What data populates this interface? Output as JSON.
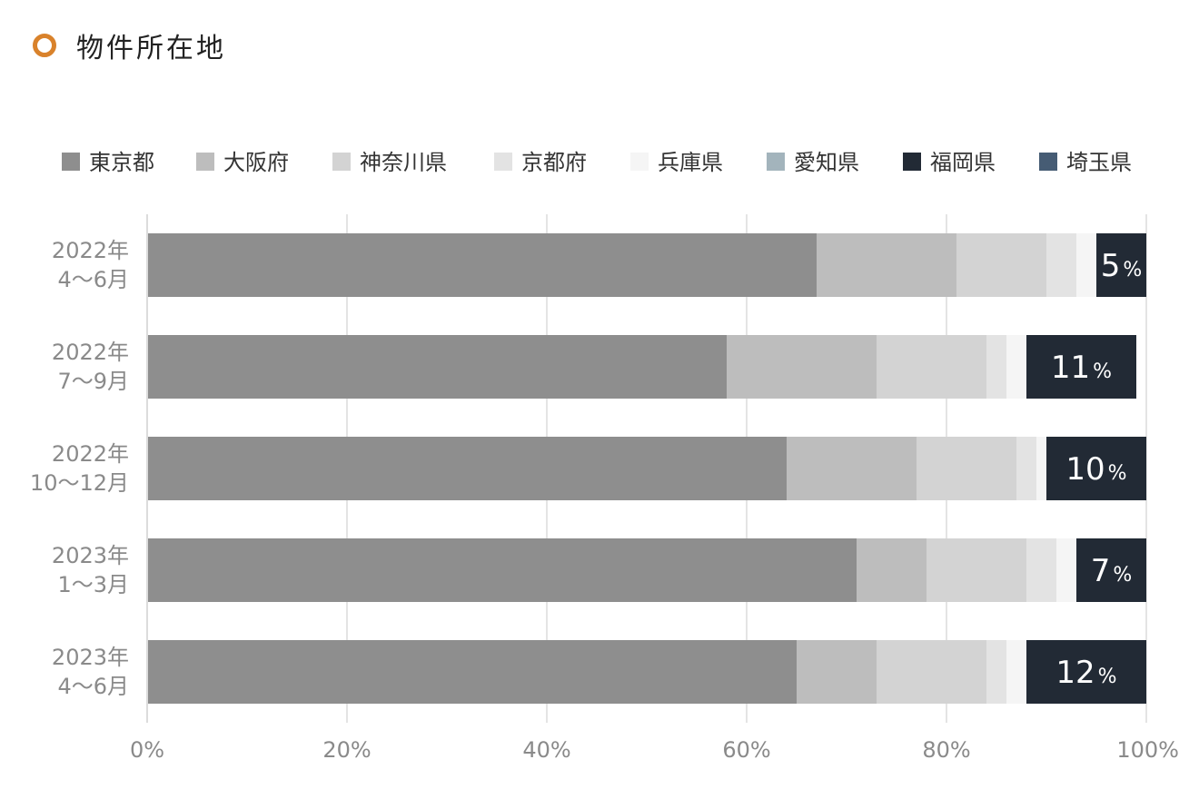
{
  "title": "物件所在地",
  "accent_color": "#d9822b",
  "chart_data": {
    "type": "bar",
    "orientation": "horizontal",
    "stacked": true,
    "categories": [
      [
        "2022年",
        "4〜6月"
      ],
      [
        "2022年",
        "7〜9月"
      ],
      [
        "2022年",
        "10〜12月"
      ],
      [
        "2023年",
        "1〜3月"
      ],
      [
        "2023年",
        "4〜6月"
      ]
    ],
    "series": [
      {
        "name": "東京都",
        "color": "#8e8e8e",
        "values": [
          67,
          58,
          64,
          71,
          65
        ]
      },
      {
        "name": "大阪府",
        "color": "#bdbdbd",
        "values": [
          14,
          15,
          13,
          7,
          8
        ]
      },
      {
        "name": "神奈川県",
        "color": "#d3d3d3",
        "values": [
          9,
          11,
          10,
          10,
          11
        ]
      },
      {
        "name": "京都府",
        "color": "#e3e3e3",
        "values": [
          3,
          2,
          2,
          3,
          2
        ]
      },
      {
        "name": "兵庫県",
        "color": "#f5f5f5",
        "values": [
          2,
          2,
          1,
          2,
          2
        ]
      },
      {
        "name": "愛知県",
        "color": "#a3b4bc",
        "values": [
          0,
          0,
          0,
          0,
          0
        ]
      },
      {
        "name": "福岡県",
        "color": "#222a35",
        "values": [
          5,
          11,
          10,
          7,
          12
        ]
      },
      {
        "name": "埼玉県",
        "color": "#465c74",
        "values": [
          0,
          0,
          0,
          0,
          0
        ]
      }
    ],
    "data_labels": {
      "series": "福岡県",
      "values": [
        "5",
        "11",
        "10",
        "7",
        "12"
      ],
      "unit": "%"
    },
    "xlim": [
      0,
      100
    ],
    "x_ticks": [
      0,
      20,
      40,
      60,
      80,
      100
    ],
    "x_tick_labels": [
      "0%",
      "20%",
      "40%",
      "60%",
      "80%",
      "100%"
    ],
    "grid": true,
    "legend_position": "top"
  }
}
